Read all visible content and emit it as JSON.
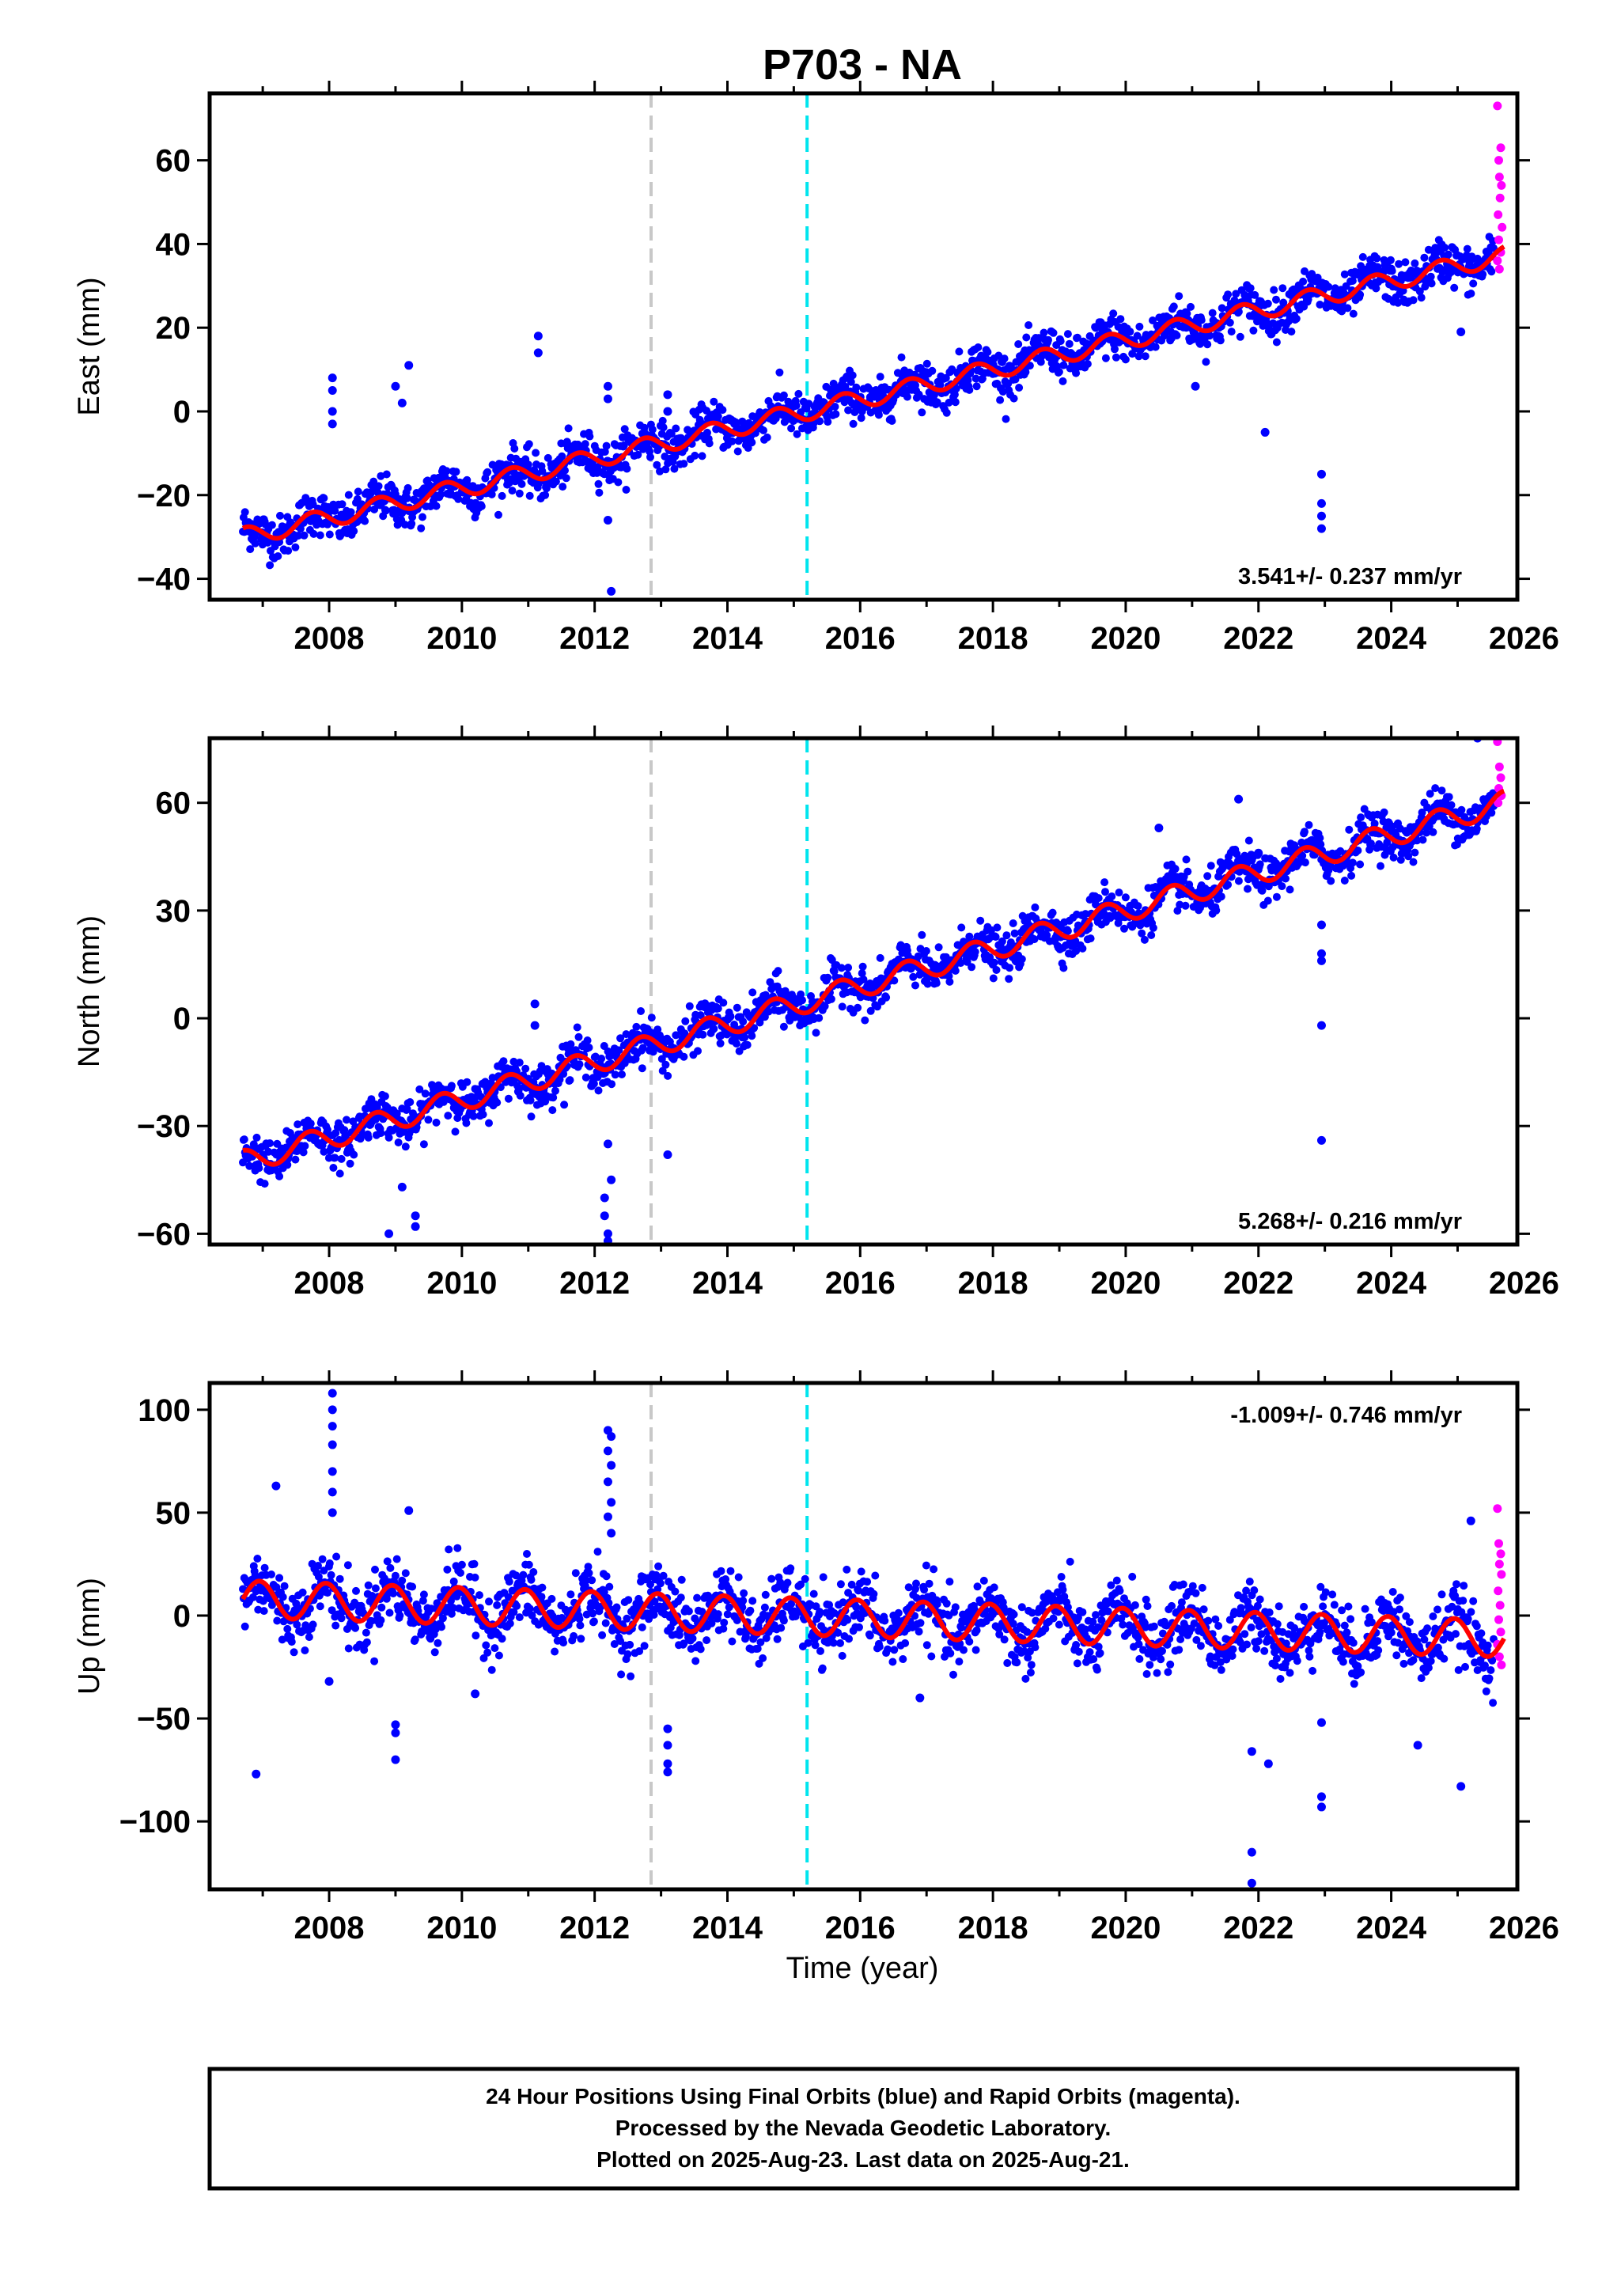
{
  "title": "P703 - NA",
  "xlabel": "Time (year)",
  "footer": {
    "line1": "24 Hour Positions Using Final Orbits (blue) and Rapid Orbits (magenta).",
    "line2": "Processed by the Nevada Geodetic Laboratory.",
    "line3": "Plotted on 2025-Aug-23. Last data on 2025-Aug-21."
  },
  "colors": {
    "final_orbits": "#0000ff",
    "rapid_orbits": "#ff00ff",
    "model_fit": "#ff0000",
    "event_gray": "#c8c8c8",
    "event_cyan": "#00e5ee"
  },
  "chart_data": [
    {
      "type": "scatter",
      "ylabel": "East (mm)",
      "xlim": [
        2006.2,
        2025.9
      ],
      "ylim": [
        -45,
        76
      ],
      "xticks": [
        2008,
        2010,
        2012,
        2014,
        2016,
        2018,
        2020,
        2022,
        2024,
        2026
      ],
      "yticks": [
        -40,
        -20,
        0,
        20,
        40,
        60
      ],
      "ytick_labels": [
        "−40",
        "−20",
        "0",
        "20",
        "40",
        "60"
      ],
      "vertical_lines": [
        {
          "x": 2012.85,
          "color": "gray"
        },
        {
          "x": 2015.2,
          "color": "cyan"
        }
      ],
      "rate_label": "3.541+/- 0.237 mm/yr",
      "rate_position": "bottom-right",
      "model": {
        "x0": 2006.7,
        "y0": -30,
        "rate": 3.541,
        "amplitude": 2.2,
        "phase": 0.5
      },
      "scatter_sigma": 2.6,
      "outliers": [
        [
          2008.05,
          8
        ],
        [
          2008.05,
          5
        ],
        [
          2008.05,
          0
        ],
        [
          2008.05,
          -3
        ],
        [
          2009.2,
          11
        ],
        [
          2009.0,
          6
        ],
        [
          2009.1,
          2
        ],
        [
          2011.15,
          18
        ],
        [
          2011.15,
          14
        ],
        [
          2012.2,
          6
        ],
        [
          2012.2,
          3
        ],
        [
          2012.2,
          -26
        ],
        [
          2012.25,
          -43
        ],
        [
          2013.1,
          4
        ],
        [
          2013.1,
          0
        ],
        [
          2021.05,
          6
        ],
        [
          2022.1,
          -5
        ],
        [
          2022.95,
          -15
        ],
        [
          2022.95,
          -22
        ],
        [
          2022.95,
          -25
        ],
        [
          2022.95,
          -28
        ],
        [
          2025.05,
          19
        ]
      ],
      "rapid_points": [
        [
          2025.6,
          73
        ],
        [
          2025.65,
          63
        ],
        [
          2025.62,
          60
        ],
        [
          2025.63,
          56
        ],
        [
          2025.66,
          54
        ],
        [
          2025.64,
          51
        ],
        [
          2025.61,
          47
        ],
        [
          2025.67,
          44
        ],
        [
          2025.62,
          41
        ],
        [
          2025.65,
          38
        ],
        [
          2025.6,
          36
        ],
        [
          2025.63,
          34
        ]
      ]
    },
    {
      "type": "scatter",
      "ylabel": "North (mm)",
      "xlim": [
        2006.2,
        2025.9
      ],
      "ylim": [
        -63,
        78
      ],
      "xticks": [
        2008,
        2010,
        2012,
        2014,
        2016,
        2018,
        2020,
        2022,
        2024,
        2026
      ],
      "yticks": [
        -60,
        -30,
        0,
        30,
        60
      ],
      "ytick_labels": [
        "−60",
        "−30",
        "0",
        "30",
        "60"
      ],
      "vertical_lines": [
        {
          "x": 2012.85,
          "color": "gray"
        },
        {
          "x": 2015.2,
          "color": "cyan"
        }
      ],
      "rate_label": "5.268+/- 0.216 mm/yr",
      "rate_position": "bottom-right",
      "model": {
        "x0": 2006.7,
        "y0": -40,
        "rate": 5.268,
        "amplitude": 3.2,
        "phase": 0.45
      },
      "scatter_sigma": 3.0,
      "outliers": [
        [
          2009.1,
          -47
        ],
        [
          2009.3,
          -58
        ],
        [
          2009.3,
          -55
        ],
        [
          2008.9,
          -60
        ],
        [
          2011.1,
          4
        ],
        [
          2011.1,
          -2
        ],
        [
          2012.15,
          -50
        ],
        [
          2012.15,
          -55
        ],
        [
          2012.2,
          -60
        ],
        [
          2012.2,
          -62
        ],
        [
          2012.25,
          -45
        ],
        [
          2012.2,
          -35
        ],
        [
          2013.1,
          -38
        ],
        [
          2020.5,
          53
        ],
        [
          2021.7,
          61
        ],
        [
          2022.0,
          46
        ],
        [
          2022.95,
          26
        ],
        [
          2022.95,
          18
        ],
        [
          2022.95,
          16
        ],
        [
          2022.95,
          -2
        ],
        [
          2022.95,
          -34
        ],
        [
          2025.3,
          78
        ]
      ],
      "rapid_points": [
        [
          2025.6,
          77
        ],
        [
          2025.63,
          70
        ],
        [
          2025.65,
          67
        ],
        [
          2025.62,
          64
        ],
        [
          2025.66,
          62
        ],
        [
          2025.61,
          60
        ]
      ]
    },
    {
      "type": "scatter",
      "ylabel": "Up (mm)",
      "xlim": [
        2006.2,
        2025.9
      ],
      "ylim": [
        -133,
        113
      ],
      "xticks": [
        2008,
        2010,
        2012,
        2014,
        2016,
        2018,
        2020,
        2022,
        2024,
        2026
      ],
      "yticks": [
        -100,
        -50,
        0,
        50,
        100
      ],
      "ytick_labels": [
        "−100",
        "−50",
        "0",
        "50",
        "100"
      ],
      "vertical_lines": [
        {
          "x": 2012.85,
          "color": "gray"
        },
        {
          "x": 2015.2,
          "color": "cyan"
        }
      ],
      "rate_label": "-1.009+/- 0.746 mm/yr",
      "rate_position": "top-right",
      "model": {
        "x0": 2006.7,
        "y0": 8,
        "rate": -1.009,
        "amplitude": 9,
        "phase": 0.7
      },
      "scatter_sigma": 8.0,
      "outliers": [
        [
          2006.9,
          -77
        ],
        [
          2007.2,
          63
        ],
        [
          2008.05,
          108
        ],
        [
          2008.05,
          100
        ],
        [
          2008.05,
          92
        ],
        [
          2008.05,
          83
        ],
        [
          2008.05,
          70
        ],
        [
          2008.05,
          60
        ],
        [
          2008.05,
          50
        ],
        [
          2008.0,
          -32
        ],
        [
          2009.0,
          -70
        ],
        [
          2009.0,
          -57
        ],
        [
          2009.0,
          -53
        ],
        [
          2009.2,
          51
        ],
        [
          2010.2,
          -38
        ],
        [
          2012.2,
          90
        ],
        [
          2012.25,
          87
        ],
        [
          2012.2,
          80
        ],
        [
          2012.25,
          73
        ],
        [
          2012.2,
          65
        ],
        [
          2012.25,
          55
        ],
        [
          2012.2,
          48
        ],
        [
          2012.25,
          40
        ],
        [
          2013.1,
          -55
        ],
        [
          2013.1,
          -63
        ],
        [
          2013.1,
          -72
        ],
        [
          2013.1,
          -76
        ],
        [
          2016.9,
          -40
        ],
        [
          2021.9,
          -66
        ],
        [
          2021.9,
          -115
        ],
        [
          2021.9,
          -130
        ],
        [
          2022.15,
          -72
        ],
        [
          2022.95,
          -88
        ],
        [
          2022.95,
          -93
        ],
        [
          2022.95,
          -52
        ],
        [
          2024.4,
          -63
        ],
        [
          2025.05,
          -83
        ],
        [
          2025.2,
          46
        ]
      ],
      "rapid_points": [
        [
          2025.6,
          52
        ],
        [
          2025.62,
          35
        ],
        [
          2025.65,
          30
        ],
        [
          2025.63,
          25
        ],
        [
          2025.66,
          20
        ],
        [
          2025.61,
          12
        ],
        [
          2025.64,
          5
        ],
        [
          2025.62,
          -2
        ],
        [
          2025.65,
          -8
        ],
        [
          2025.6,
          -14
        ],
        [
          2025.63,
          -20
        ],
        [
          2025.66,
          -24
        ]
      ]
    }
  ]
}
